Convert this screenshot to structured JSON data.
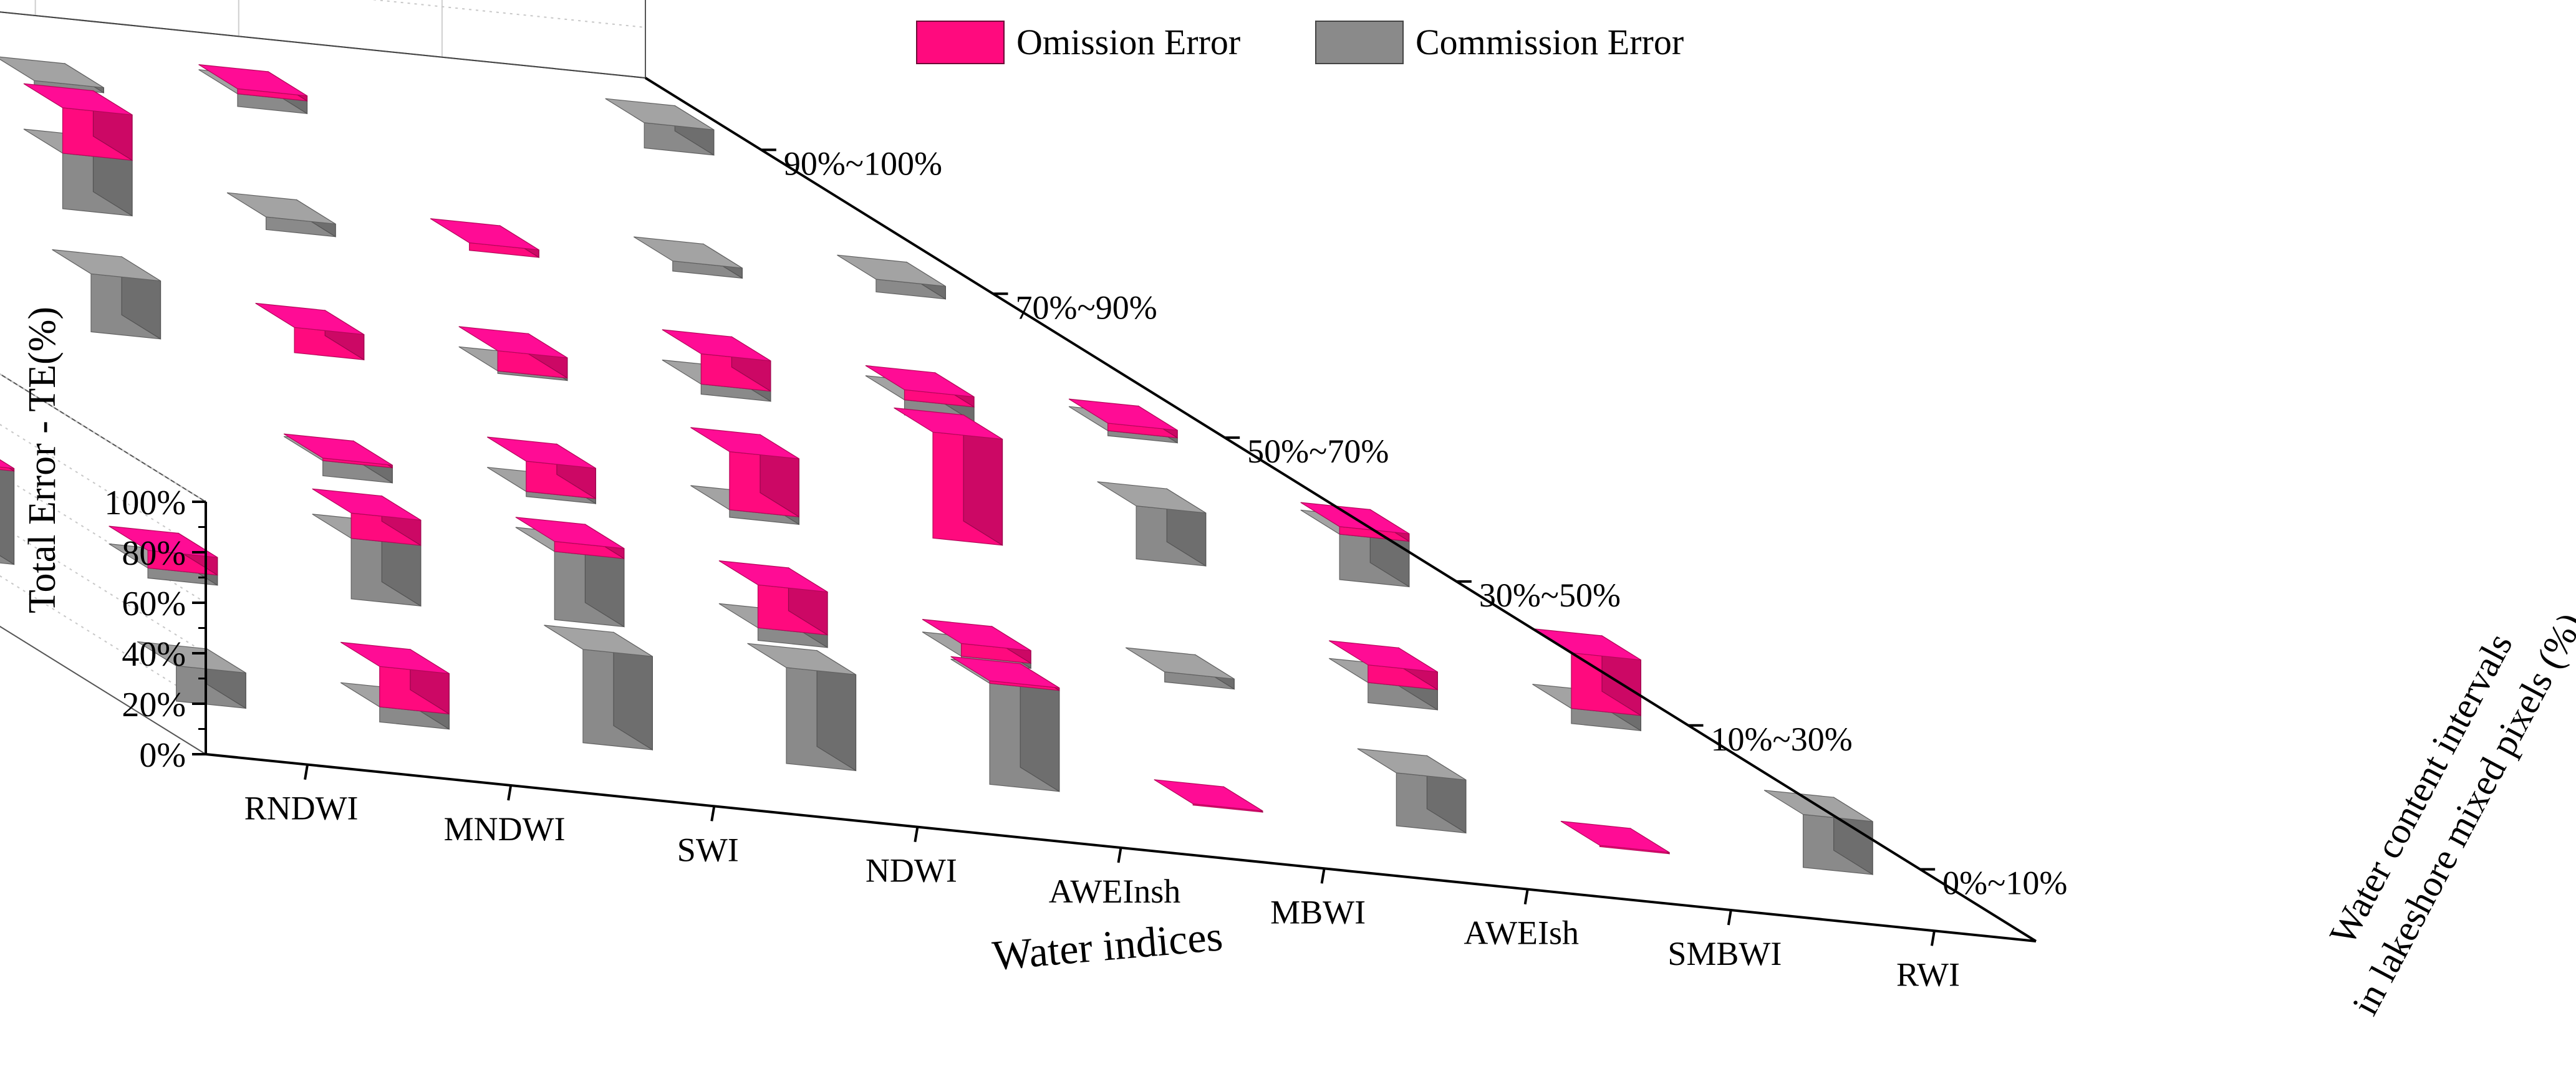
{
  "chart_data": {
    "type": "bar",
    "subtype": "3d-stacked-bar",
    "title": "",
    "ylabel": "Total Error - TE(%)",
    "xlabel": "Water indices",
    "zlabel_line1": "Water content  intervals",
    "zlabel_line2": "in lakeshore mixed pixels (%)",
    "ylim": [
      0,
      100
    ],
    "yticks": [
      "0%",
      "20%",
      "40%",
      "60%",
      "80%",
      "100%"
    ],
    "y_tick_values": [
      0,
      20,
      40,
      60,
      80,
      100
    ],
    "categories": [
      "RNDWI",
      "MNDWI",
      "SWI",
      "NDWI",
      "AWEInsh",
      "MBWI",
      "AWEIsh",
      "SMBWI",
      "RWI"
    ],
    "depth_categories": [
      "0%~10%",
      "10%~30%",
      "30%~50%",
      "50%~70%",
      "70%~90%",
      "90%~100%"
    ],
    "legend_position": "top-center",
    "grid": true,
    "colors": {
      "omission": "#ff0a7e",
      "commission": "#8a8a8a"
    },
    "series": [
      {
        "name": "Omission Error",
        "values": [
          [
            0,
            1,
            4,
            0,
            0,
            3
          ],
          [
            16,
            7,
            0,
            12,
            1,
            50
          ],
          [
            0,
            10,
            0,
            0,
            14,
            0
          ],
          [
            0,
            4,
            1,
            0,
            2,
            0
          ],
          [
            1,
            17,
            12,
            10,
            18,
            0
          ],
          [
            0.5,
            5,
            23,
            8,
            0,
            0
          ],
          [
            0,
            0,
            42,
            12,
            3,
            2
          ],
          [
            0.5,
            7,
            0,
            4,
            0,
            0
          ],
          [
            0,
            22,
            3,
            3,
            0,
            0
          ]
        ]
      },
      {
        "name": "Commission Error",
        "values": [
          [
            14,
            37,
            55,
            31,
            44,
            46
          ],
          [
            6,
            4,
            3,
            3,
            31,
            24
          ],
          [
            37,
            24,
            0,
            18,
            7,
            18
          ],
          [
            38,
            27,
            6,
            23,
            0,
            0
          ],
          [
            40,
            5,
            2,
            0,
            22,
            30
          ],
          [
            0,
            2,
            3,
            1,
            5,
            2
          ],
          [
            21,
            4,
            0,
            4,
            0,
            5
          ],
          [
            0,
            8,
            21,
            6,
            4,
            0
          ],
          [
            21,
            6,
            18,
            2,
            5,
            10
          ]
        ]
      }
    ]
  }
}
